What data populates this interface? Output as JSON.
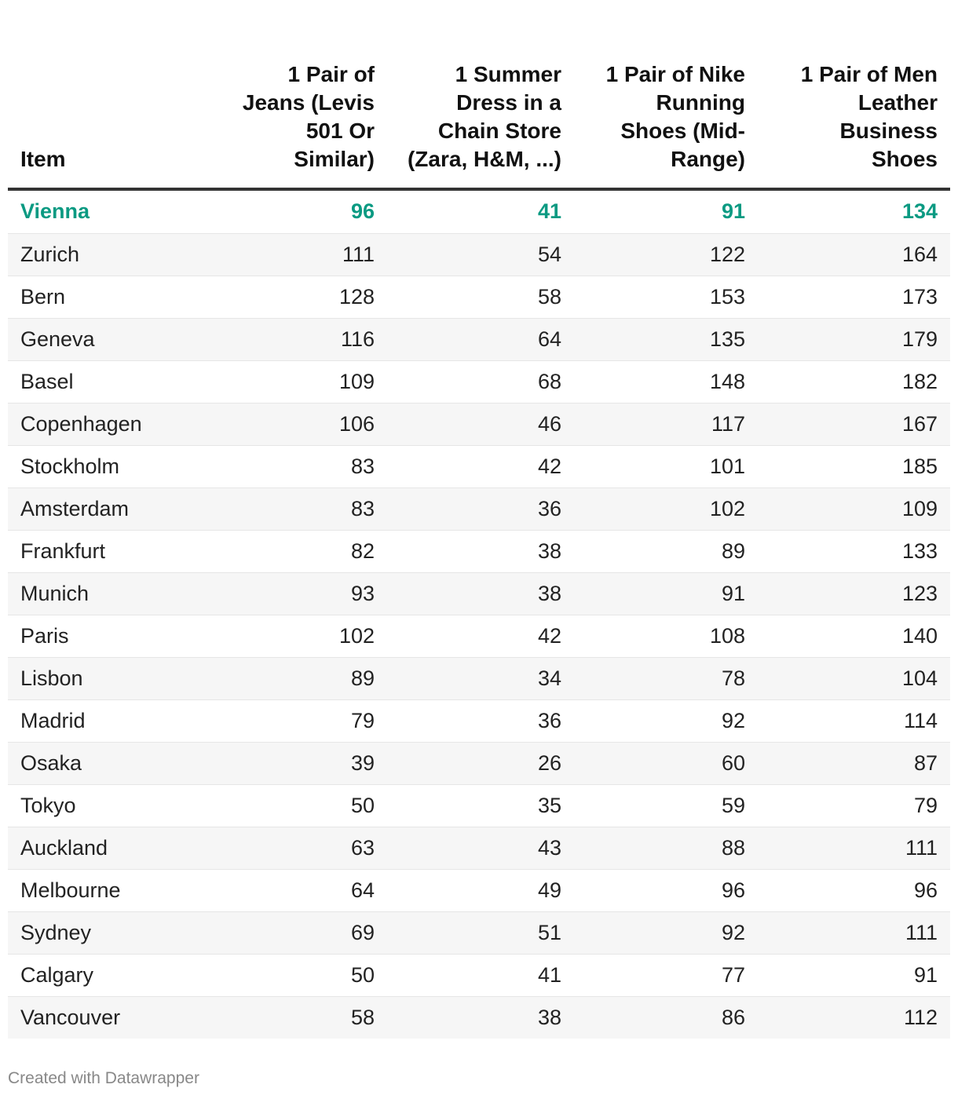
{
  "chart_data": {
    "type": "table",
    "columns": [
      "Item",
      "1 Pair of Jeans (Levis 501 Or Similar)",
      "1 Summer Dress in a Chain Store (Zara, H&M, ...)",
      "1 Pair of Nike Running Shoes (Mid-Range)",
      "1 Pair of Men Leather Business Shoes"
    ],
    "rows": [
      {
        "item": "Vienna",
        "values": [
          96,
          41,
          91,
          134
        ],
        "highlight": true
      },
      {
        "item": "Zurich",
        "values": [
          111,
          54,
          122,
          164
        ]
      },
      {
        "item": "Bern",
        "values": [
          128,
          58,
          153,
          173
        ]
      },
      {
        "item": "Geneva",
        "values": [
          116,
          64,
          135,
          179
        ]
      },
      {
        "item": "Basel",
        "values": [
          109,
          68,
          148,
          182
        ]
      },
      {
        "item": "Copenhagen",
        "values": [
          106,
          46,
          117,
          167
        ]
      },
      {
        "item": "Stockholm",
        "values": [
          83,
          42,
          101,
          185
        ]
      },
      {
        "item": "Amsterdam",
        "values": [
          83,
          36,
          102,
          109
        ]
      },
      {
        "item": "Frankfurt",
        "values": [
          82,
          38,
          89,
          133
        ]
      },
      {
        "item": "Munich",
        "values": [
          93,
          38,
          91,
          123
        ]
      },
      {
        "item": "Paris",
        "values": [
          102,
          42,
          108,
          140
        ]
      },
      {
        "item": "Lisbon",
        "values": [
          89,
          34,
          78,
          104
        ]
      },
      {
        "item": "Madrid",
        "values": [
          79,
          36,
          92,
          114
        ]
      },
      {
        "item": "Osaka",
        "values": [
          39,
          26,
          60,
          87
        ]
      },
      {
        "item": "Tokyo",
        "values": [
          50,
          35,
          59,
          79
        ]
      },
      {
        "item": "Auckland",
        "values": [
          63,
          43,
          88,
          111
        ]
      },
      {
        "item": "Melbourne",
        "values": [
          64,
          49,
          96,
          96
        ]
      },
      {
        "item": "Sydney",
        "values": [
          69,
          51,
          92,
          111
        ]
      },
      {
        "item": "Calgary",
        "values": [
          50,
          41,
          77,
          91
        ]
      },
      {
        "item": "Vancouver",
        "values": [
          58,
          38,
          86,
          112
        ]
      }
    ],
    "highlight_color": "#0b9a82"
  },
  "footer": {
    "credit": "Created with Datawrapper"
  }
}
